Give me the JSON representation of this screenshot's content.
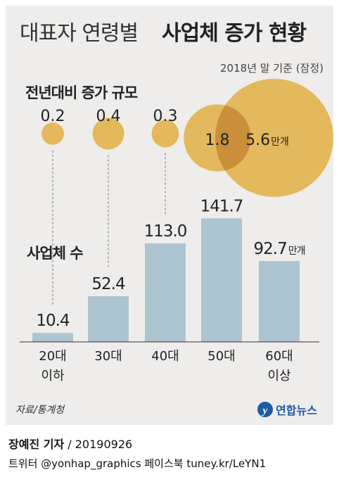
{
  "title": {
    "light": "대표자 연령별",
    "bold": "사업체 증가 현황"
  },
  "subtitle": "2018년 말 기준 (잠정)",
  "section_labels": {
    "increase": "전년대비 증가 규모",
    "count": "사업체 수"
  },
  "unit": "만개",
  "colors": {
    "background": "#efedeb",
    "bar": "#adc4d1",
    "bubble": "#e4b85c",
    "bubble_overlap": "#c98f3a",
    "logo": "#1f5aa6"
  },
  "chart_data": [
    {
      "type": "bar",
      "categories": [
        "20대\n이하",
        "30대",
        "40대",
        "50대",
        "60대\n이상"
      ],
      "values": [
        10.4,
        52.4,
        113.0,
        141.7,
        92.7
      ],
      "value_labels": [
        "10.4",
        "52.4",
        "113.0",
        "141.7",
        "92.7"
      ],
      "label": "사업체 수",
      "unit": "만개"
    },
    {
      "type": "scatter",
      "categories": [
        "20대\n이하",
        "30대",
        "40대",
        "50대",
        "60대\n이상"
      ],
      "values": [
        0.2,
        0.4,
        0.3,
        1.8,
        5.6
      ],
      "value_labels": [
        "0.2",
        "0.4",
        "0.3",
        "1.8",
        "5.6"
      ],
      "label": "전년대비 증가 규모",
      "unit": "만개",
      "encoding": "bubble area"
    }
  ],
  "source": "자료/통계청",
  "logo_text": "연합뉴스",
  "byline": {
    "name": "장예진 기자",
    "sep_date": " / 20190926"
  },
  "social": "트위터 @yonhap_graphics  페이스북 tuney.kr/LeYN1"
}
